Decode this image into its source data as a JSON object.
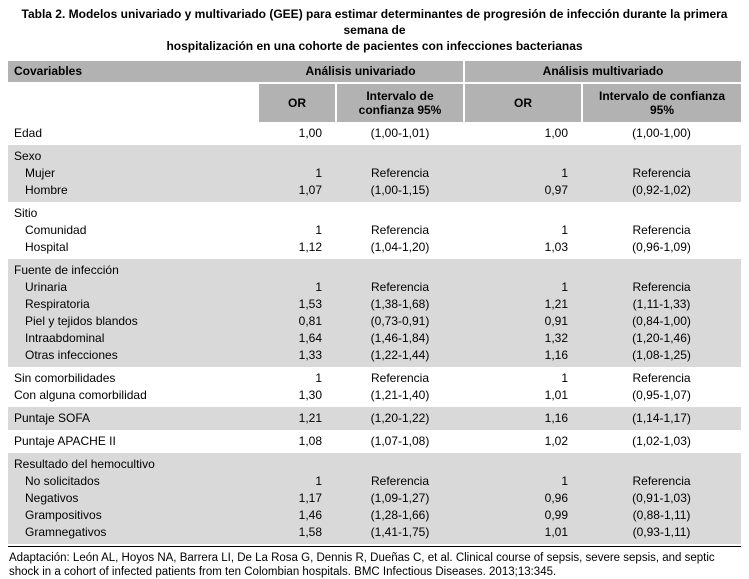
{
  "title": {
    "line1": "Tabla 2. Modelos univariado y multivariado (GEE) para estimar determinantes de progresión de infección durante la primera semana de",
    "line2": "hospitalización en una cohorte de pacientes con infecciones bacterianas"
  },
  "colors": {
    "header_bg": "#b2b2b2",
    "shaded_bg": "#d9d9d9",
    "text": "#000000"
  },
  "header": {
    "covariables": "Covariables",
    "univariate": "Análisis univariado",
    "multivariate": "Análisis multivariado",
    "or": "OR",
    "ci": "Intervalo de confianza 95%"
  },
  "sections": [
    {
      "header": null,
      "shaded": false,
      "rows": [
        {
          "label": "Edad",
          "uni_or": "1,00",
          "uni_ci": "(1,00-1,01)",
          "multi_or": "1,00",
          "multi_ci": "(1,00-1,00)"
        }
      ]
    },
    {
      "header": "Sexo",
      "shaded": true,
      "rows": [
        {
          "label": "Mujer",
          "uni_or": "1",
          "uni_ci": "Referencia",
          "multi_or": "1",
          "multi_ci": "Referencia"
        },
        {
          "label": "Hombre",
          "uni_or": "1,07",
          "uni_ci": "(1,00-1,15)",
          "multi_or": "0,97",
          "multi_ci": "(0,92-1,02)"
        }
      ]
    },
    {
      "header": "Sitio",
      "shaded": false,
      "rows": [
        {
          "label": "Comunidad",
          "uni_or": "1",
          "uni_ci": "Referencia",
          "multi_or": "1",
          "multi_ci": "Referencia"
        },
        {
          "label": "Hospital",
          "uni_or": "1,12",
          "uni_ci": "(1,04-1,20)",
          "multi_or": "1,03",
          "multi_ci": "(0,96-1,09)"
        }
      ]
    },
    {
      "header": "Fuente de infección",
      "shaded": true,
      "rows": [
        {
          "label": "Urinaria",
          "uni_or": "1",
          "uni_ci": "Referencia",
          "multi_or": "1",
          "multi_ci": "Referencia"
        },
        {
          "label": "Respiratoria",
          "uni_or": "1,53",
          "uni_ci": "(1,38-1,68)",
          "multi_or": "1,21",
          "multi_ci": "(1,11-1,33)"
        },
        {
          "label": "Piel y tejidos blandos",
          "uni_or": "0,81",
          "uni_ci": "(0,73-0,91)",
          "multi_or": "0,91",
          "multi_ci": "(0,84-1,00)"
        },
        {
          "label": "Intraabdominal",
          "uni_or": "1,64",
          "uni_ci": "(1,46-1,84)",
          "multi_or": "1,32",
          "multi_ci": "(1,20-1,46)"
        },
        {
          "label": "Otras infecciones",
          "uni_or": "1,33",
          "uni_ci": "(1,22-1,44)",
          "multi_or": "1,16",
          "multi_ci": "(1,08-1,25)"
        }
      ]
    },
    {
      "header": null,
      "shaded": false,
      "rows": [
        {
          "label": "Sin comorbilidades",
          "uni_or": "1",
          "uni_ci": "Referencia",
          "multi_or": "1",
          "multi_ci": "Referencia"
        },
        {
          "label": "Con alguna comorbilidad",
          "uni_or": "1,30",
          "uni_ci": "(1,21-1,40)",
          "multi_or": "1,01",
          "multi_ci": "(0,95-1,07)"
        }
      ]
    },
    {
      "header": null,
      "shaded": true,
      "rows": [
        {
          "label": "Puntaje SOFA",
          "uni_or": "1,21",
          "uni_ci": "(1,20-1,22)",
          "multi_or": "1,16",
          "multi_ci": "(1,14-1,17)"
        }
      ]
    },
    {
      "header": null,
      "shaded": false,
      "rows": [
        {
          "label": "Puntaje APACHE II",
          "uni_or": "1,08",
          "uni_ci": "(1,07-1,08)",
          "multi_or": "1,02",
          "multi_ci": "(1,02-1,03)"
        }
      ]
    },
    {
      "header": "Resultado del hemocultivo",
      "shaded": true,
      "rows": [
        {
          "label": "No solicitados",
          "uni_or": "1",
          "uni_ci": "Referencia",
          "multi_or": "1",
          "multi_ci": "Referencia"
        },
        {
          "label": "Negativos",
          "uni_or": "1,17",
          "uni_ci": "(1,09-1,27)",
          "multi_or": "0,96",
          "multi_ci": "(0,91-1,03)"
        },
        {
          "label": "Grampositivos",
          "uni_or": "1,46",
          "uni_ci": "(1,28-1,66)",
          "multi_or": "0,99",
          "multi_ci": "(0,88-1,11)"
        },
        {
          "label": "Gramnegativos",
          "uni_or": "1,58",
          "uni_ci": "(1,41-1,75)",
          "multi_or": "1,01",
          "multi_ci": "(0,93-1,11)"
        }
      ]
    }
  ],
  "footnote": "Adaptación: León AL, Hoyos NA, Barrera LI, De La Rosa G, Dennis R, Dueñas C, et al. Clinical course of sepsis, severe sepsis, and septic shock in a cohort of infected patients from ten Colombian hospitals. BMC Infectious Diseases. 2013;13:345."
}
